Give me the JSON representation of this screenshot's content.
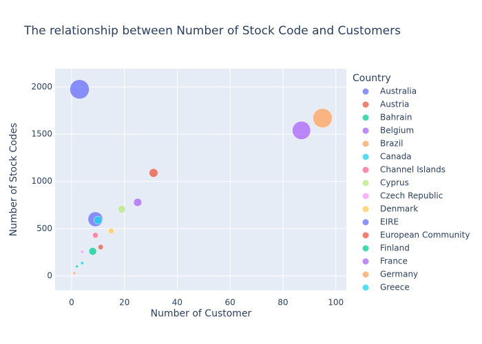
{
  "chart_data": {
    "type": "bubble",
    "title": "The relationship between Number of Stock Code and Customers",
    "x_label": "Number of Customer",
    "y_label": "Number of Stock Codes",
    "legend_title": "Country",
    "xlim": [
      -6.25,
      104
    ],
    "xticks": [
      0,
      20,
      40,
      60,
      80,
      100
    ],
    "ylim": [
      -153,
      2192
    ],
    "yticks": [
      0,
      500,
      1000,
      1500,
      2000
    ],
    "grid": true,
    "series": [
      {
        "name": "Australia",
        "color": "#636efa",
        "x": [
          9
        ],
        "values": [
          600
        ],
        "sizes": [
          100
        ]
      },
      {
        "name": "Austria",
        "color": "#EF553B",
        "x": [
          11
        ],
        "values": [
          305
        ],
        "sizes": [
          8
        ]
      },
      {
        "name": "Bahrain",
        "color": "#00cc96",
        "x": [
          2
        ],
        "values": [
          100
        ],
        "sizes": [
          1
        ]
      },
      {
        "name": "Belgium",
        "color": "#ab63fa",
        "x": [
          25
        ],
        "values": [
          778
        ],
        "sizes": [
          25
        ]
      },
      {
        "name": "Brazil",
        "color": "#FFA15A",
        "x": [
          1
        ],
        "values": [
          30
        ],
        "sizes": [
          1
        ]
      },
      {
        "name": "Canada",
        "color": "#19d3f3",
        "x": [
          4
        ],
        "values": [
          135
        ],
        "sizes": [
          2
        ]
      },
      {
        "name": "Channel Islands",
        "color": "#FF6692",
        "x": [
          9
        ],
        "values": [
          430
        ],
        "sizes": [
          10
        ]
      },
      {
        "name": "Cyprus",
        "color": "#B6E880",
        "x": [
          19
        ],
        "values": [
          705
        ],
        "sizes": [
          22
        ]
      },
      {
        "name": "Czech Republic",
        "color": "#FF97FF",
        "x": [
          4
        ],
        "values": [
          255
        ],
        "sizes": [
          2
        ]
      },
      {
        "name": "Denmark",
        "color": "#FECB52",
        "x": [
          15
        ],
        "values": [
          475
        ],
        "sizes": [
          10
        ]
      },
      {
        "name": "EIRE",
        "color": "#636efa",
        "x": [
          3
        ],
        "values": [
          1975
        ],
        "sizes": [
          180
        ]
      },
      {
        "name": "European Community",
        "color": "#EF553B",
        "x": [
          31
        ],
        "values": [
          1090
        ],
        "sizes": [
          30
        ]
      },
      {
        "name": "Finland",
        "color": "#00cc96",
        "x": [
          8
        ],
        "values": [
          260
        ],
        "sizes": [
          22
        ]
      },
      {
        "name": "France",
        "color": "#ab63fa",
        "x": [
          87
        ],
        "values": [
          1540
        ],
        "sizes": [
          160
        ]
      },
      {
        "name": "Germany",
        "color": "#FFA15A",
        "x": [
          95
        ],
        "values": [
          1670
        ],
        "sizes": [
          180
        ]
      },
      {
        "name": "Greece",
        "color": "#19d3f3",
        "x": [
          10
        ],
        "values": [
          590
        ],
        "sizes": [
          25
        ]
      }
    ]
  }
}
